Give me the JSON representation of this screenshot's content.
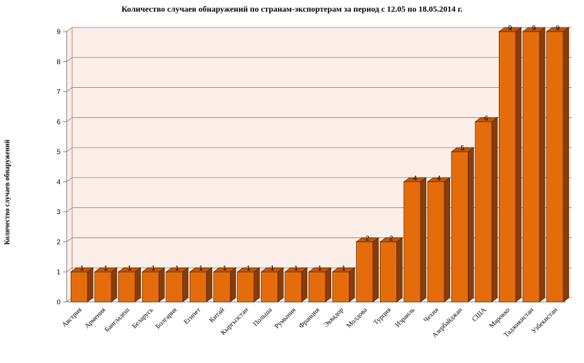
{
  "chart_data": {
    "type": "bar",
    "title": "Количество случаев обнаружений по странам-экспортерам за период с 12.05 по 18.05.2014 г.",
    "ylabel": "Количество случаев обнаружений",
    "xlabel": "",
    "ylim": [
      0,
      9
    ],
    "yticks": [
      "0",
      "1",
      "2",
      "3",
      "4",
      "5",
      "6",
      "7",
      "8",
      "9"
    ],
    "grid": true,
    "legend": "none",
    "categories": [
      "Австрия",
      "Армения",
      "Бангладеш",
      "Беларусь",
      "Болгария",
      "Египет",
      "Китай",
      "Кыргызстан",
      "Польша",
      "Румыния",
      "Франция",
      "Эквадор",
      "Молдова",
      "Турция",
      "Израиль",
      "Чехия",
      "Азербайджан",
      "США",
      "Марокко",
      "Таджикистан",
      "Узбекистан"
    ],
    "values": [
      1,
      1,
      1,
      1,
      1,
      1,
      1,
      1,
      1,
      1,
      1,
      1,
      2,
      2,
      4,
      4,
      5,
      6,
      9,
      9,
      9
    ],
    "colors": {
      "bar_front": "#E46C0A",
      "bar_side": "#8A3C06",
      "bar_top": "#C0580A",
      "plot_bg": "#FBEEE8",
      "grid": "#808080"
    }
  }
}
